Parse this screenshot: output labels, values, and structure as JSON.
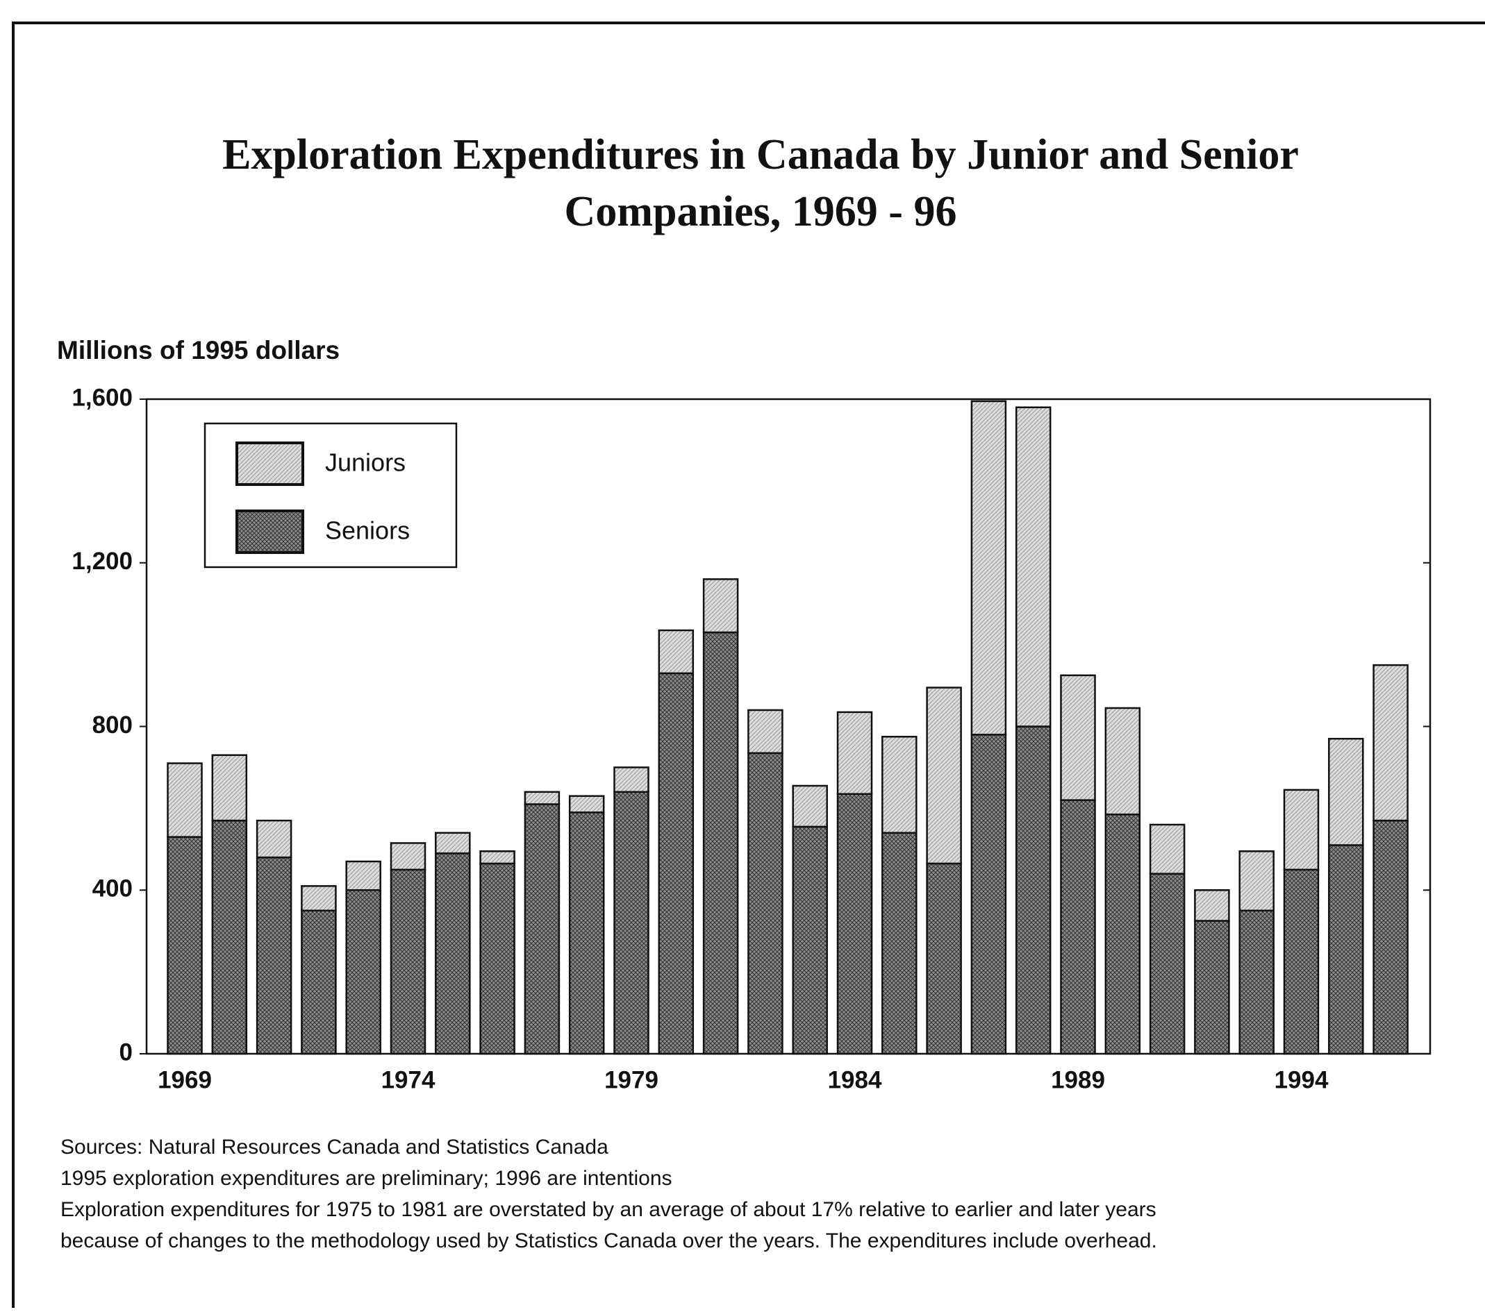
{
  "chart_data": {
    "type": "stacked_bar",
    "title": [
      "Exploration Expenditures in Canada by Junior and Senior",
      "Companies, 1969 - 96"
    ],
    "y_axis_label": "Millions of 1995 dollars",
    "categories": [
      "1969",
      null,
      null,
      null,
      null,
      "1974",
      null,
      null,
      null,
      null,
      "1979",
      null,
      null,
      null,
      null,
      "1984",
      null,
      null,
      null,
      null,
      "1989",
      null,
      null,
      null,
      null,
      "1994",
      null,
      null
    ],
    "series": [
      {
        "name": "Seniors",
        "color": "#8c8c8c",
        "values": [
          530,
          570,
          480,
          350,
          400,
          450,
          490,
          465,
          610,
          590,
          640,
          930,
          1030,
          735,
          555,
          635,
          540,
          465,
          780,
          800,
          620,
          585,
          440,
          325,
          350,
          450,
          510,
          570
        ]
      },
      {
        "name": "Juniors",
        "color": "#dcdcdc",
        "values": [
          180,
          160,
          90,
          60,
          70,
          65,
          50,
          30,
          30,
          40,
          60,
          105,
          130,
          105,
          100,
          200,
          235,
          430,
          815,
          780,
          305,
          260,
          120,
          75,
          145,
          195,
          260,
          380
        ]
      }
    ],
    "ylim": [
      0,
      1600
    ],
    "yticks": [
      0,
      400,
      800,
      {
        "value": 1200,
        "label": "1,200"
      },
      {
        "value": 1600,
        "label": "1,600"
      }
    ],
    "grid": false,
    "legend": "upper left",
    "notes": [
      "Sources: Natural Resources Canada and Statistics Canada",
      "1995 exploration expenditures are preliminary; 1996 are intentions",
      "Exploration expenditures for 1975 to 1981 are overstated by an average of about 17% relative to earlier and later years",
      "because of changes to the methodology used by Statistics Canada over the years. The expenditures include overhead."
    ]
  }
}
